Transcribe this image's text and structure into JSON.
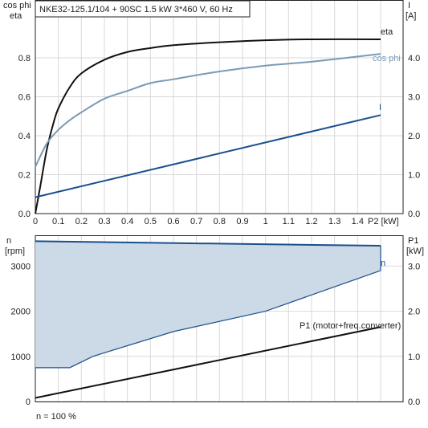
{
  "chart_data": [
    {
      "type": "line",
      "title": "NKE32-125.1/104 + 90SC   1.5 kW   3*460 V, 60 Hz",
      "left_axis_label": [
        "cos phi",
        "eta"
      ],
      "right_axis_label": [
        "I",
        "[A]"
      ],
      "xlabel": "P2 [kW]",
      "xlim": [
        0,
        1.5
      ],
      "ylim_left": [
        0,
        1.0
      ],
      "ylim_right": [
        0,
        5.0
      ],
      "x_ticks": [
        "0",
        "0.1",
        "0.2",
        "0.3",
        "0.4",
        "0.5",
        "0.6",
        "0.7",
        "0.8",
        "0.9",
        "1",
        "1.1",
        "1.2",
        "1.3",
        "1.4"
      ],
      "y_ticks_left": [
        "0.0",
        "0.2",
        "0.4",
        "0.6",
        "0.8"
      ],
      "y_ticks_right": [
        "0.0",
        "1.0",
        "2.0",
        "3.0",
        "4.0"
      ],
      "series": [
        {
          "name": "eta",
          "axis": "left",
          "color": "#111111",
          "x": [
            0.0,
            0.02,
            0.05,
            0.08,
            0.1,
            0.15,
            0.2,
            0.3,
            0.4,
            0.5,
            0.6,
            0.8,
            1.0,
            1.2,
            1.5
          ],
          "y": [
            0.0,
            0.13,
            0.33,
            0.47,
            0.54,
            0.65,
            0.72,
            0.79,
            0.83,
            0.85,
            0.865,
            0.88,
            0.89,
            0.895,
            0.895
          ]
        },
        {
          "name": "cos phi",
          "axis": "left",
          "color": "#7a9ab5",
          "x": [
            0.0,
            0.05,
            0.1,
            0.15,
            0.2,
            0.3,
            0.4,
            0.5,
            0.6,
            0.8,
            1.0,
            1.2,
            1.5
          ],
          "y": [
            0.24,
            0.36,
            0.43,
            0.48,
            0.52,
            0.59,
            0.63,
            0.67,
            0.69,
            0.73,
            0.76,
            0.78,
            0.82
          ]
        },
        {
          "name": "I",
          "axis": "right",
          "color": "#1a4f8c",
          "x": [
            0.0,
            1.5
          ],
          "y": [
            0.42,
            2.53
          ]
        }
      ]
    },
    {
      "type": "area",
      "left_axis_label": [
        "n",
        "[rpm]"
      ],
      "right_axis_label": [
        "P1",
        "[kW]"
      ],
      "xlim": [
        0,
        1.5
      ],
      "ylim_left": [
        0,
        3700
      ],
      "ylim_right": [
        0,
        3.7
      ],
      "y_ticks_left": [
        "0",
        "1000",
        "2000",
        "3000"
      ],
      "y_ticks_right": [
        "0.0",
        "1.0",
        "2.0",
        "3.0"
      ],
      "footnote": "n = 100 %",
      "series": [
        {
          "name": "n",
          "axis": "left",
          "color": "#1a4f8c",
          "fill": "#ccd9e6",
          "upper": {
            "x": [
              0.0,
              1.5
            ],
            "y": [
              3550,
              3450
            ]
          },
          "lower": {
            "x": [
              0.0,
              0.15,
              0.25,
              0.6,
              1.0,
              1.5
            ],
            "y": [
              750,
              750,
              1000,
              1550,
              2000,
              2900
            ]
          }
        },
        {
          "name": "P1 (motor+freq.converter)",
          "axis": "right",
          "color": "#111111",
          "x": [
            0.0,
            1.5
          ],
          "y": [
            0.08,
            1.65
          ]
        }
      ]
    }
  ]
}
